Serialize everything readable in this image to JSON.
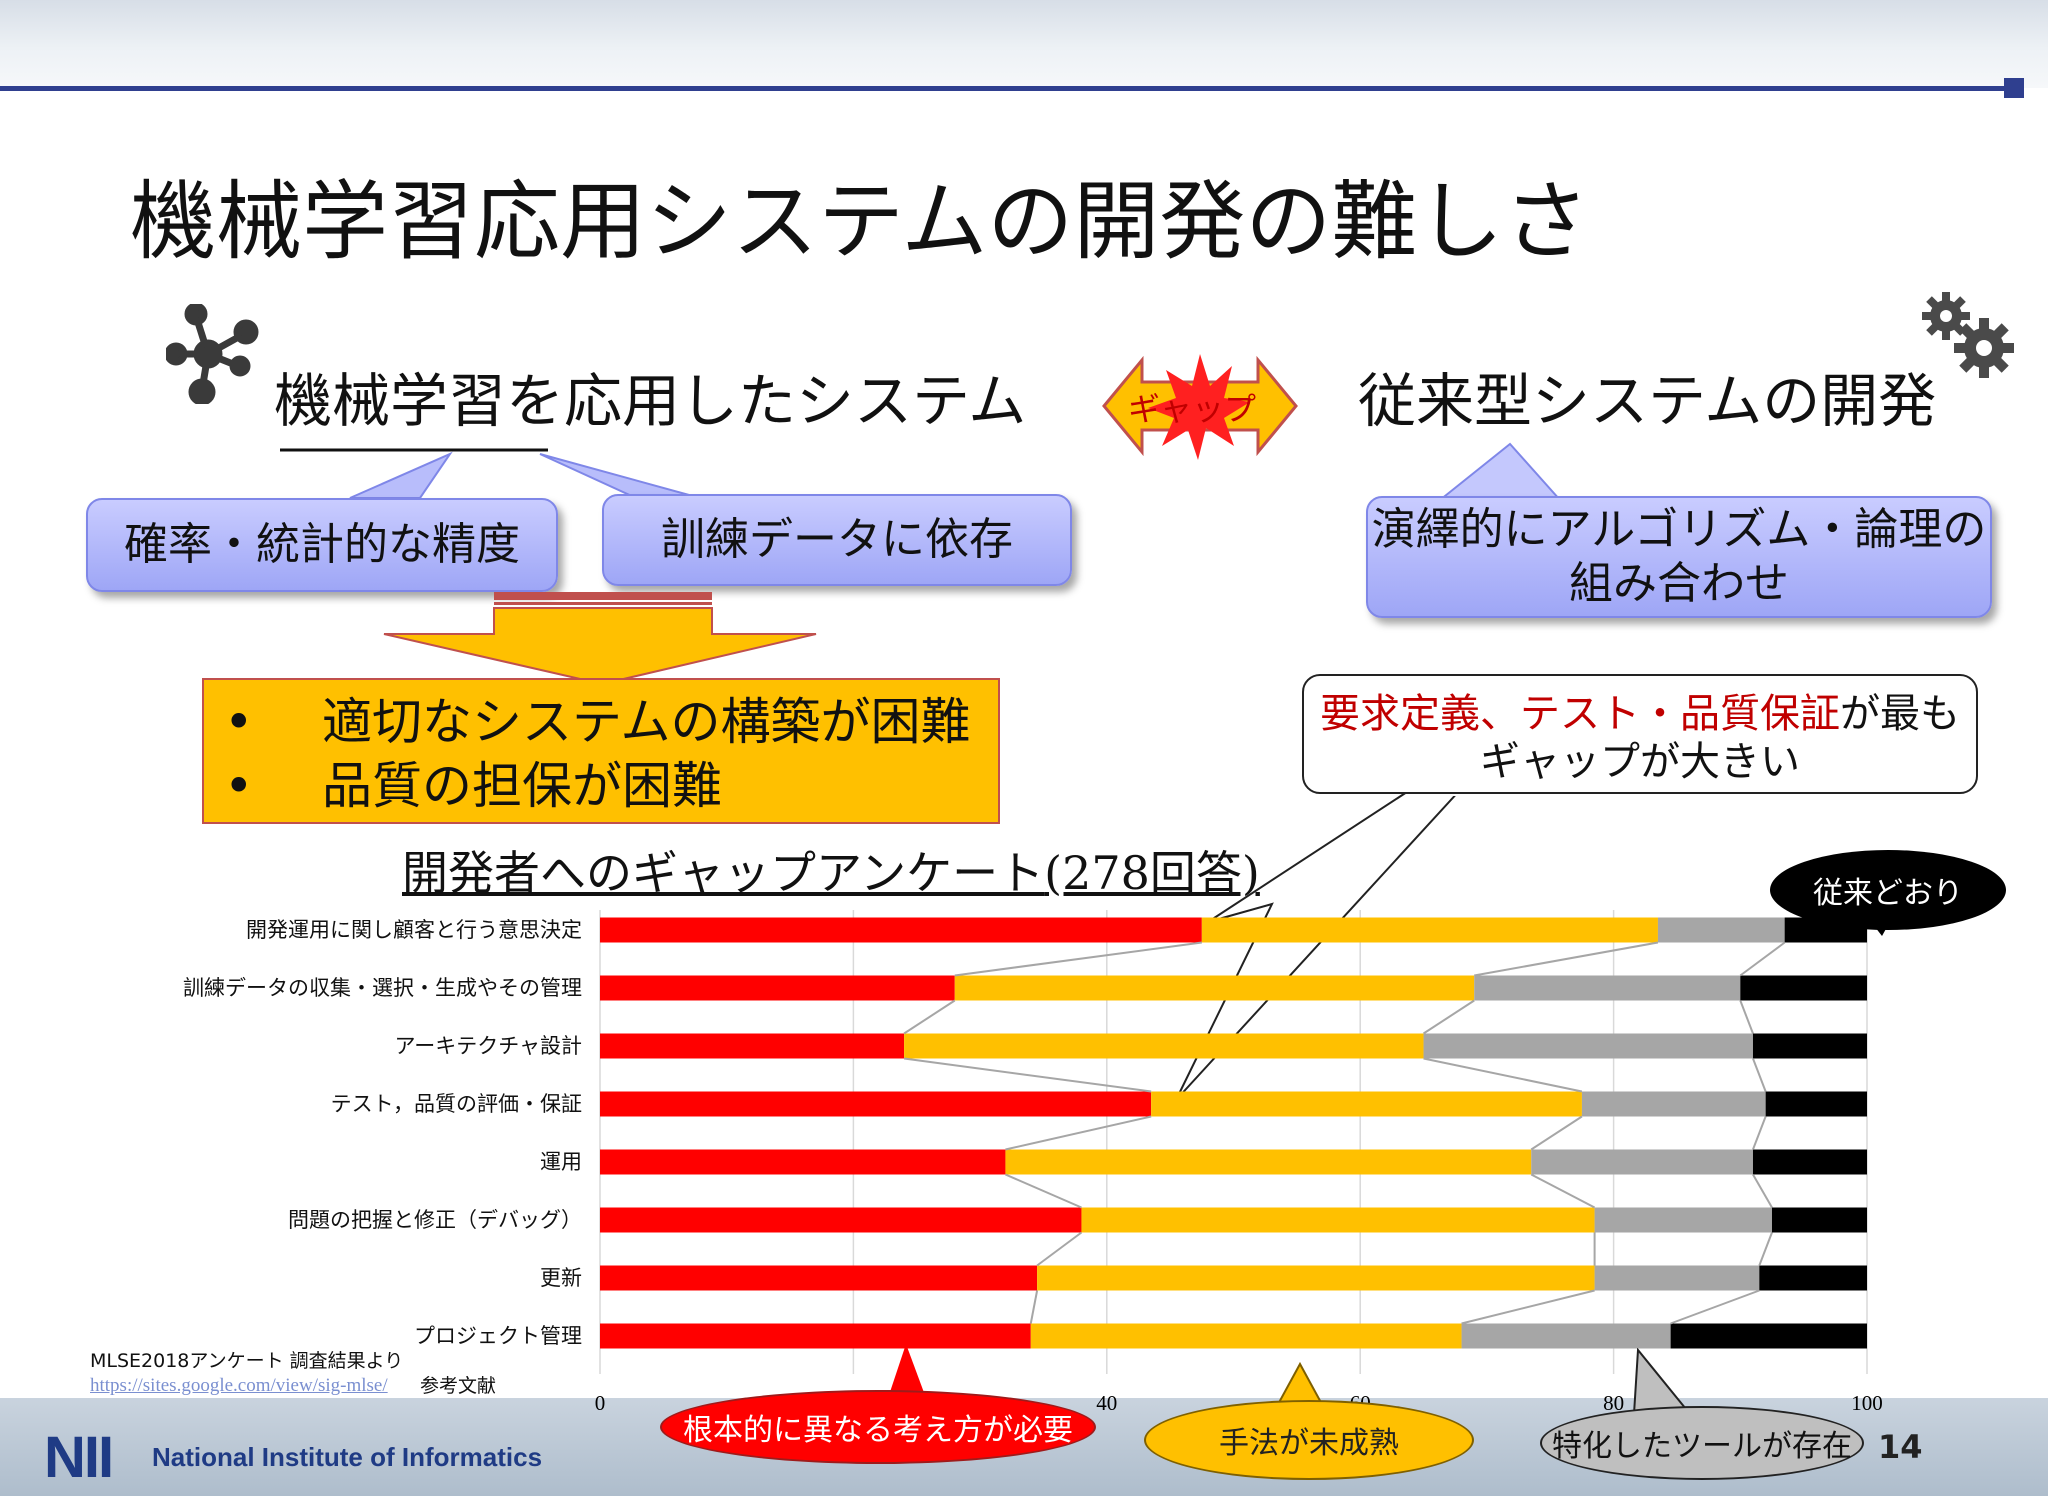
{
  "slide": {
    "title": "機械学習応用システムの開発の難しさ",
    "page_number": "14"
  },
  "left_heading": "機械学習を応用したシステム",
  "right_heading": "従来型システムの開発",
  "gap_label": "ギャップ",
  "bubbles": {
    "probability": "確率・統計的な精度",
    "training_data": "訓練データに依存",
    "deductive_line1": "演繹的にアルゴリズム・論理の",
    "deductive_line2": "組み合わせ"
  },
  "result_box": {
    "bullet": "•",
    "items": [
      "適切なシステムの構築が困難",
      "品質の担保が困難"
    ]
  },
  "callout": {
    "highlight": "要求定義、テスト・品質保証",
    "rest": "が最も",
    "line2": "ギャップが大きい"
  },
  "survey_title": {
    "main": "開発者へのギャップアンケート",
    "count": "(278回答)"
  },
  "labels": {
    "conventional": "従来どおり",
    "fundamental": "根本的に異なる考え方が必要",
    "immature": "手法が未成熟",
    "tool": "特化したツールが存在"
  },
  "source": {
    "text": "MLSE2018アンケート 調査結果より",
    "link": "https://sites.google.com/view/sig-mlse/",
    "ref": "参考文献"
  },
  "footer": {
    "logo": "NII",
    "name": "National Institute of Informatics"
  },
  "colors": {
    "fundamental": "#ff0000",
    "immature": "#ffc000",
    "tool": "#a6a6a6",
    "conventional": "#000000"
  },
  "chart_data": {
    "type": "bar",
    "orientation": "horizontal",
    "stacked": true,
    "categories": [
      "開発運用に関し顧客と行う意思決定",
      "訓練データの収集・選択・生成やその管理",
      "アーキテクチャ設計",
      "テスト，品質の評価・保証",
      "運用",
      "問題の把握と修正（デバッグ）",
      "更新",
      "プロジェクト管理"
    ],
    "series": [
      {
        "name": "根本的に異なる考え方が必要",
        "values": [
          47.5,
          28.0,
          24.0,
          43.5,
          32.0,
          38.0,
          34.5,
          34.0
        ]
      },
      {
        "name": "手法が未成熟",
        "values": [
          36.0,
          41.0,
          41.0,
          34.0,
          41.5,
          40.5,
          44.0,
          34.0
        ]
      },
      {
        "name": "特化したツールが存在",
        "values": [
          10.0,
          21.0,
          26.0,
          14.5,
          17.5,
          14.0,
          13.0,
          16.5
        ]
      },
      {
        "name": "従来どおり",
        "values": [
          6.5,
          10.0,
          9.0,
          8.0,
          9.0,
          7.5,
          8.5,
          15.5
        ]
      }
    ],
    "xlim": [
      0,
      100
    ],
    "xticks": [
      0,
      40,
      60,
      80,
      100
    ],
    "grid": true
  }
}
